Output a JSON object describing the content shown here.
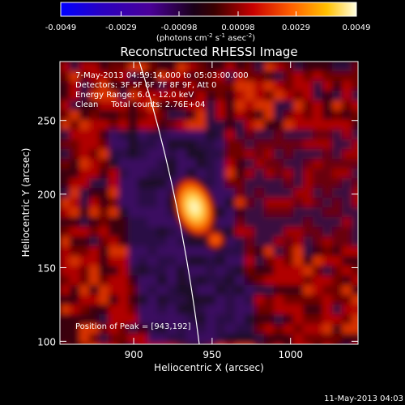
{
  "chart_data": {
    "type": "heatmap",
    "title": "Reconstructed RHESSI Image",
    "xlabel": "Heliocentric X (arcsec)",
    "ylabel": "Heliocentric Y (arcsec)",
    "xlim": [
      853,
      1043
    ],
    "ylim": [
      98,
      290
    ],
    "x_ticks": [
      900,
      950,
      1000
    ],
    "y_ticks": [
      100,
      150,
      200,
      250
    ],
    "colorbar": {
      "range": [
        -0.0049,
        0.0049
      ],
      "tick_values": [
        -0.0049,
        -0.0029,
        -0.00098,
        0.00098,
        0.0029,
        0.0049
      ],
      "tick_labels": [
        "-0.0049",
        "-0.0029",
        "-0.00098",
        "0.00098",
        "0.0029",
        "0.0049"
      ],
      "units_label": "(photons cm",
      "units_exp1": "-2",
      "units_mid": " s",
      "units_exp2": "-1",
      "units_mid2": " asec",
      "units_exp3": "-2",
      "units_end": ")",
      "colormap": [
        "#0000ff",
        "#2a00c0",
        "#4a0099",
        "#1a0018",
        "#3a0000",
        "#c80000",
        "#ff6000",
        "#ffc000",
        "#ffffe0"
      ]
    },
    "annotations": [
      " 7-May-2013 04:59:14.000 to 05:03:00.000",
      "Detectors: 3F 5F 6F 7F 8F 9F, Att 0",
      "Energy Range: 6.0 - 12.0 keV",
      "Clean     Total counts: 2.76E+04"
    ],
    "peak": {
      "label": "Position of Peak = [943,192]",
      "x": 943,
      "y": 192
    },
    "limb_curve": {
      "color": "#ffffff"
    },
    "footer_date": "11-May-2013 04:03"
  }
}
